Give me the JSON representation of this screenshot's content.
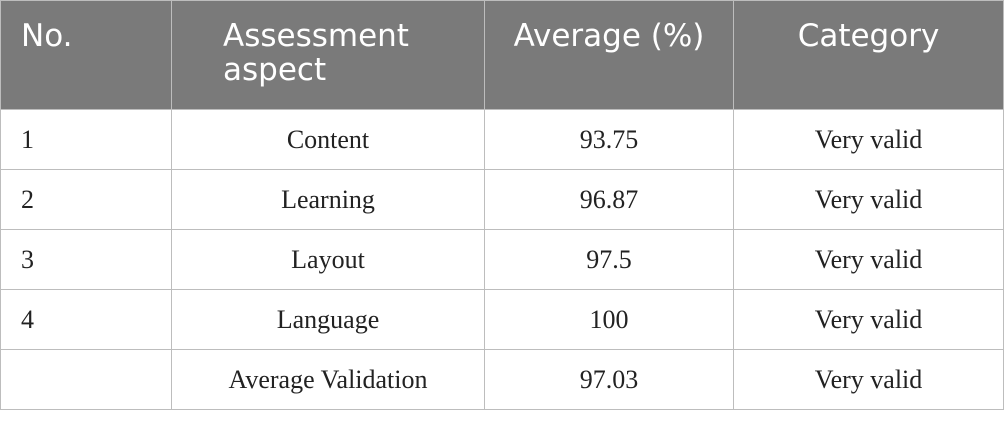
{
  "table": {
    "headers": {
      "no": "No.",
      "aspect": "Assessment aspect",
      "average": "Average (%)",
      "category": "Category"
    },
    "rows": [
      {
        "no": "1",
        "aspect": "Content",
        "average": "93.75",
        "category": "Very valid"
      },
      {
        "no": "2",
        "aspect": "Learning",
        "average": "96.87",
        "category": "Very valid"
      },
      {
        "no": "3",
        "aspect": "Layout",
        "average": "97.5",
        "category": "Very valid"
      },
      {
        "no": "4",
        "aspect": "Language",
        "average": "100",
        "category": "Very valid"
      },
      {
        "no": "",
        "aspect": "Average Validation",
        "average": "97.03",
        "category": "Very valid"
      }
    ]
  }
}
